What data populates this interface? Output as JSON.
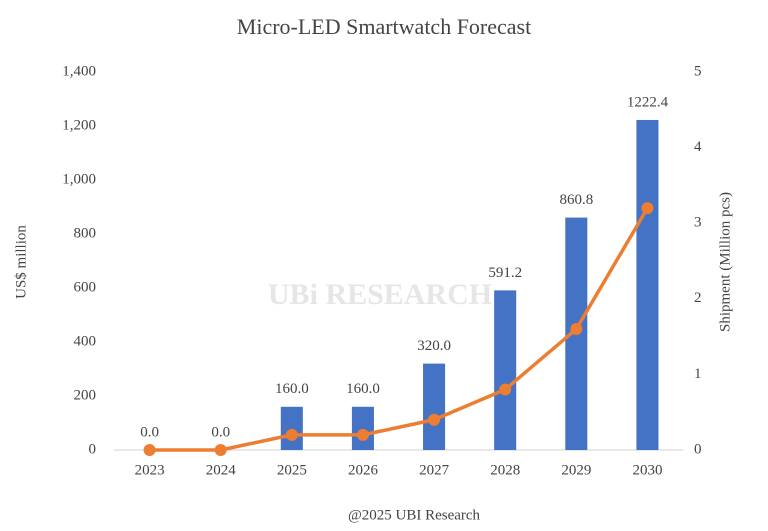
{
  "chart_data": {
    "type": "bar",
    "title": "Micro-LED Smartwatch Forecast",
    "y_label": "US$ million",
    "y2_label": "Shipment (Million pcs)",
    "source": "@2025 UBI Research",
    "watermark": "UBi RESEARCH",
    "categories": [
      "2023",
      "2024",
      "2025",
      "2026",
      "2027",
      "2028",
      "2029",
      "2030"
    ],
    "series": [
      {
        "type": "bar",
        "color": "#4472c4",
        "values": [
          0,
          0,
          160,
          160,
          320,
          591.2,
          860.8,
          1222.4
        ],
        "value_labels": [
          "0.0",
          "0.0",
          "160.0",
          "160.0",
          "320.0",
          "591.2",
          "860.8",
          "1222.4"
        ]
      },
      {
        "type": "line",
        "axis": "y2",
        "color": "#ed7d31",
        "values": [
          0,
          0,
          0.2,
          0.2,
          0.4,
          0.8,
          1.6,
          3.2
        ]
      }
    ],
    "ylim": [
      0,
      1400
    ],
    "yticks": [
      0,
      200,
      400,
      600,
      800,
      {
        "value": 1000,
        "label": "1,000"
      },
      {
        "value": 1200,
        "label": "1,200"
      },
      {
        "value": 1400,
        "label": "1,400"
      }
    ],
    "y2lim": [
      0,
      5
    ],
    "y2ticks": [
      0,
      1,
      2,
      3,
      4,
      5
    ],
    "grid": false
  }
}
